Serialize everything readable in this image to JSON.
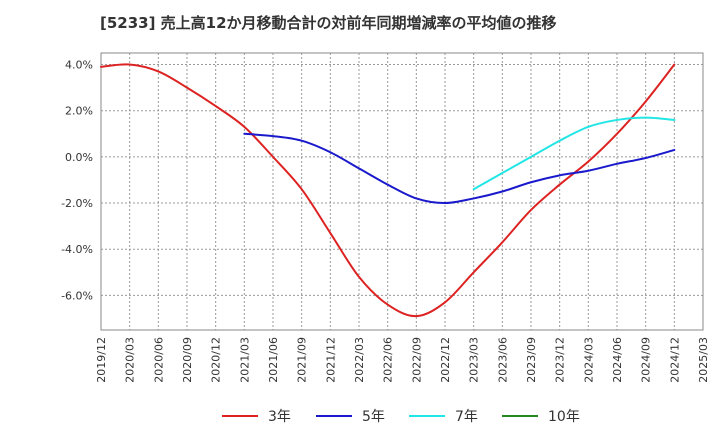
{
  "chart_data": {
    "type": "line",
    "title": "[5233]  売上高12か月移動合計の対前年同期増減率の平均値の推移",
    "xlabel": "",
    "ylabel": "",
    "ylim": [
      -7.5,
      4.5
    ],
    "yticks": [
      4.0,
      2.0,
      0.0,
      -2.0,
      -4.0,
      -6.0
    ],
    "ytick_labels": [
      "4.0%",
      "2.0%",
      "0.0%",
      "-2.0%",
      "-4.0%",
      "-6.0%"
    ],
    "x_tick_labels": [
      "2019/12",
      "2020/03",
      "2020/06",
      "2020/09",
      "2020/12",
      "2021/03",
      "2021/06",
      "2021/09",
      "2021/12",
      "2022/03",
      "2022/06",
      "2022/09",
      "2022/12",
      "2023/03",
      "2023/06",
      "2023/09",
      "2023/12",
      "2024/03",
      "2024/06",
      "2024/09",
      "2024/12",
      "2025/03"
    ],
    "grid": true,
    "legend_position": "bottom",
    "series": [
      {
        "name": "3年",
        "color": "#dd2222",
        "points": [
          [
            "2019/12",
            3.9
          ],
          [
            "2020/03",
            4.0
          ],
          [
            "2020/06",
            3.7
          ],
          [
            "2020/09",
            3.0
          ],
          [
            "2020/12",
            2.2
          ],
          [
            "2021/03",
            1.3
          ],
          [
            "2021/06",
            0.0
          ],
          [
            "2021/09",
            -1.4
          ],
          [
            "2021/12",
            -3.3
          ],
          [
            "2022/03",
            -5.2
          ],
          [
            "2022/06",
            -6.4
          ],
          [
            "2022/09",
            -6.9
          ],
          [
            "2022/12",
            -6.3
          ],
          [
            "2023/03",
            -5.0
          ],
          [
            "2023/06",
            -3.7
          ],
          [
            "2023/09",
            -2.3
          ],
          [
            "2023/12",
            -1.2
          ],
          [
            "2024/03",
            -0.2
          ],
          [
            "2024/06",
            1.0
          ],
          [
            "2024/09",
            2.4
          ],
          [
            "2024/12",
            4.0
          ]
        ]
      },
      {
        "name": "5年",
        "color": "#1a1acc",
        "points": [
          [
            "2021/03",
            1.0
          ],
          [
            "2021/06",
            0.9
          ],
          [
            "2021/09",
            0.7
          ],
          [
            "2021/12",
            0.2
          ],
          [
            "2022/03",
            -0.5
          ],
          [
            "2022/06",
            -1.2
          ],
          [
            "2022/09",
            -1.8
          ],
          [
            "2022/12",
            -2.0
          ],
          [
            "2023/03",
            -1.8
          ],
          [
            "2023/06",
            -1.5
          ],
          [
            "2023/09",
            -1.1
          ],
          [
            "2023/12",
            -0.8
          ],
          [
            "2024/03",
            -0.6
          ],
          [
            "2024/06",
            -0.3
          ],
          [
            "2024/09",
            -0.05
          ],
          [
            "2024/12",
            0.3
          ]
        ]
      },
      {
        "name": "7年",
        "color": "#22e5e5",
        "points": [
          [
            "2023/03",
            -1.4
          ],
          [
            "2023/06",
            -0.7
          ],
          [
            "2023/09",
            0.0
          ],
          [
            "2023/12",
            0.7
          ],
          [
            "2024/03",
            1.3
          ],
          [
            "2024/06",
            1.6
          ],
          [
            "2024/09",
            1.7
          ],
          [
            "2024/12",
            1.6
          ]
        ]
      },
      {
        "name": "10年",
        "color": "#228822",
        "points": []
      }
    ]
  }
}
